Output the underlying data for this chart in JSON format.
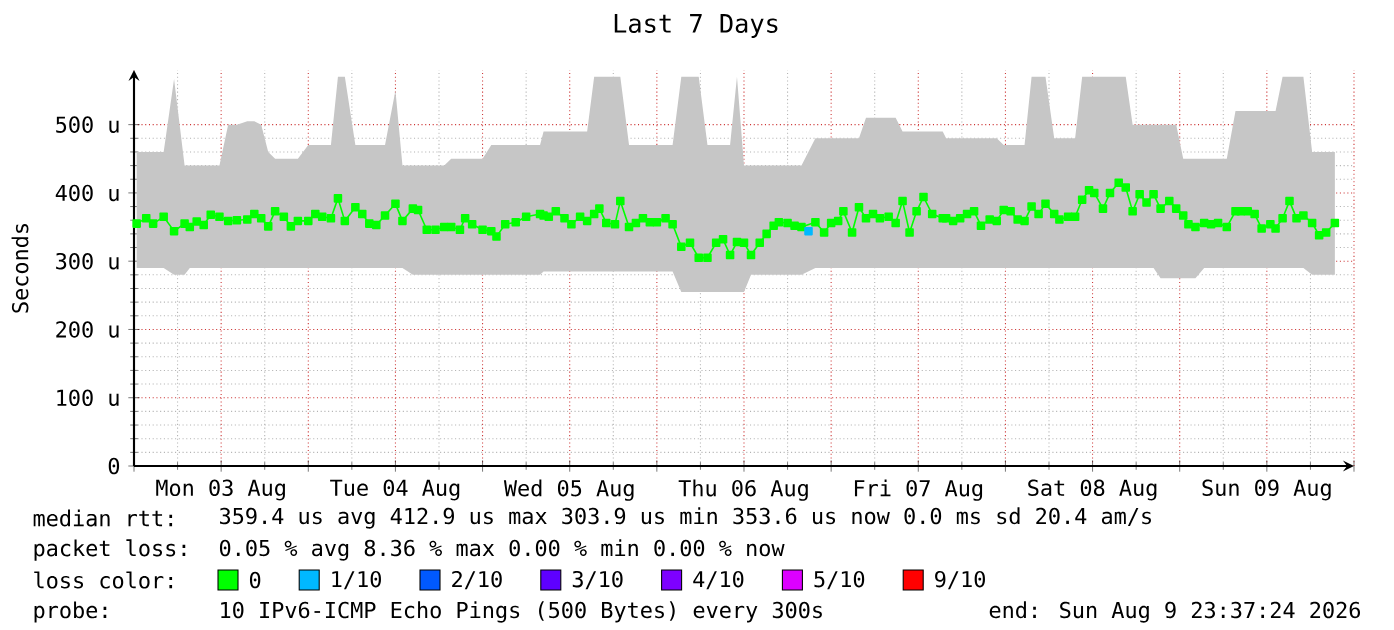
{
  "chart_data": {
    "type": "line",
    "title": "Last 7 Days",
    "ylabel": "Seconds",
    "legend_title": "loss color:",
    "xlim": [
      "2026-08-03T00:00",
      "2026-08-10T00:00"
    ],
    "ylim": [
      0,
      580
    ],
    "xticks": [
      {
        "value": "2026-08-03T00:00",
        "label": null
      },
      {
        "value": "2026-08-03T12:00",
        "label": "Mon 03 Aug"
      },
      {
        "value": "2026-08-04T00:00",
        "label": null
      },
      {
        "value": "2026-08-04T12:00",
        "label": "Tue 04 Aug"
      },
      {
        "value": "2026-08-05T00:00",
        "label": null
      },
      {
        "value": "2026-08-05T12:00",
        "label": "Wed 05 Aug"
      },
      {
        "value": "2026-08-06T00:00",
        "label": null
      },
      {
        "value": "2026-08-06T12:00",
        "label": "Thu 06 Aug"
      },
      {
        "value": "2026-08-07T00:00",
        "label": null
      },
      {
        "value": "2026-08-07T12:00",
        "label": "Fri 07 Aug"
      },
      {
        "value": "2026-08-08T00:00",
        "label": null
      },
      {
        "value": "2026-08-08T12:00",
        "label": "Sat 08 Aug"
      },
      {
        "value": "2026-08-09T00:00",
        "label": null
      },
      {
        "value": "2026-08-09T12:00",
        "label": "Sun 09 Aug"
      },
      {
        "value": "2026-08-10T00:00",
        "label": null
      }
    ],
    "yticks": [
      0,
      {
        "value": 100,
        "label": "100 u"
      },
      {
        "value": 200,
        "label": "200 u"
      },
      {
        "value": 300,
        "label": "300 u"
      },
      {
        "value": 400,
        "label": "400 u"
      },
      {
        "value": 500,
        "label": "500 u"
      }
    ],
    "grid": true,
    "legend": "bottom",
    "marker": "square",
    "line_style": "solid",
    "annotations": [
      "median rtt:",
      "359.4 us avg  412.9 us max  303.9 us min  353.6 us now  0.0 ms sd  20.4 am/s",
      "packet loss:",
      "0.05 % avg  8.36 % max  0.00 % min  0.00 % now",
      "probe:",
      "10 IPv6-ICMP Echo Pings (500 Bytes) every 300s",
      "end: Sun Aug  9 23:37:24 2026"
    ],
    "series": [
      {
        "name": "0",
        "color": "#00ff00",
        "x": [
          "2026-08-03T00:22",
          "2026-08-03T01:41",
          "2026-08-03T02:38",
          "2026-08-03T04:05",
          "2026-08-03T05:31",
          "2026-08-03T06:58",
          "2026-08-03T07:41",
          "2026-08-03T08:38",
          "2026-08-03T09:36",
          "2026-08-03T10:34",
          "2026-08-03T11:46",
          "2026-08-03T12:58",
          "2026-08-03T14:10",
          "2026-08-03T15:36",
          "2026-08-03T16:34",
          "2026-08-03T17:31",
          "2026-08-03T18:29",
          "2026-08-03T19:26",
          "2026-08-03T20:38",
          "2026-08-03T21:36",
          "2026-08-03T22:34",
          "2026-08-04T00:00",
          "2026-08-04T00:58",
          "2026-08-04T01:55",
          "2026-08-04T03:07",
          "2026-08-04T04:05",
          "2026-08-04T05:02",
          "2026-08-04T06:29",
          "2026-08-04T07:26",
          "2026-08-04T08:24",
          "2026-08-04T09:22",
          "2026-08-04T10:34",
          "2026-08-04T12:00",
          "2026-08-04T12:58",
          "2026-08-04T14:24",
          "2026-08-04T15:07",
          "2026-08-04T16:19",
          "2026-08-04T17:31",
          "2026-08-04T18:43",
          "2026-08-04T19:41",
          "2026-08-04T20:53",
          "2026-08-04T21:36",
          "2026-08-04T22:34",
          "2026-08-05T00:00",
          "2026-08-05T01:12",
          "2026-08-05T01:55",
          "2026-08-05T03:07",
          "2026-08-05T04:34",
          "2026-08-05T06:00",
          "2026-08-05T07:55",
          "2026-08-05T08:24",
          "2026-08-05T09:07",
          "2026-08-05T10:05",
          "2026-08-05T11:17",
          "2026-08-05T12:14",
          "2026-08-05T13:26",
          "2026-08-05T14:24",
          "2026-08-05T15:22",
          "2026-08-05T16:05",
          "2026-08-05T17:02",
          "2026-08-05T18:14",
          "2026-08-05T18:58",
          "2026-08-05T20:10",
          "2026-08-05T21:07",
          "2026-08-05T22:05",
          "2026-08-05T23:02",
          "2026-08-06T00:00",
          "2026-08-06T01:12",
          "2026-08-06T02:10",
          "2026-08-06T03:22",
          "2026-08-06T04:34",
          "2026-08-06T05:46",
          "2026-08-06T06:58",
          "2026-08-06T08:10",
          "2026-08-06T09:07",
          "2026-08-06T10:05",
          "2026-08-06T11:02",
          "2026-08-06T12:00",
          "2026-08-06T12:58",
          "2026-08-06T14:10",
          "2026-08-06T15:07",
          "2026-08-06T16:05",
          "2026-08-06T16:48",
          "2026-08-06T18:00",
          "2026-08-06T18:58",
          "2026-08-06T19:55",
          "2026-08-06T21:50",
          "2026-08-06T23:02",
          "2026-08-07T00:00",
          "2026-08-07T00:58",
          "2026-08-07T01:41",
          "2026-08-07T02:53",
          "2026-08-07T03:50",
          "2026-08-07T04:48",
          "2026-08-07T05:46",
          "2026-08-07T06:43",
          "2026-08-07T07:55",
          "2026-08-07T08:53",
          "2026-08-07T09:50",
          "2026-08-07T10:48",
          "2026-08-07T11:46",
          "2026-08-07T12:43",
          "2026-08-07T13:55",
          "2026-08-07T15:22",
          "2026-08-07T15:50",
          "2026-08-07T16:48",
          "2026-08-07T17:46",
          "2026-08-07T18:43",
          "2026-08-07T19:41",
          "2026-08-07T20:38",
          "2026-08-07T21:50",
          "2026-08-07T22:48",
          "2026-08-07T23:46",
          "2026-08-08T00:43",
          "2026-08-08T01:41",
          "2026-08-08T02:38",
          "2026-08-08T03:36",
          "2026-08-08T04:34",
          "2026-08-08T05:31",
          "2026-08-08T06:43",
          "2026-08-08T07:26",
          "2026-08-08T08:38",
          "2026-08-08T09:36",
          "2026-08-08T10:34",
          "2026-08-08T11:31",
          "2026-08-08T12:14",
          "2026-08-08T13:26",
          "2026-08-08T14:24",
          "2026-08-08T15:36",
          "2026-08-08T16:34",
          "2026-08-08T17:31",
          "2026-08-08T18:29",
          "2026-08-08T19:26",
          "2026-08-08T20:24",
          "2026-08-08T21:22",
          "2026-08-08T22:34",
          "2026-08-08T23:31",
          "2026-08-09T00:29",
          "2026-08-09T01:12",
          "2026-08-09T02:10",
          "2026-08-09T03:22",
          "2026-08-09T04:19",
          "2026-08-09T05:17",
          "2026-08-09T06:29",
          "2026-08-09T07:41",
          "2026-08-09T08:24",
          "2026-08-09T09:22",
          "2026-08-09T10:19",
          "2026-08-09T11:17",
          "2026-08-09T12:29",
          "2026-08-09T13:12",
          "2026-08-09T14:10",
          "2026-08-09T15:07",
          "2026-08-09T16:05",
          "2026-08-09T17:02",
          "2026-08-09T18:14",
          "2026-08-09T19:12",
          "2026-08-09T20:10",
          "2026-08-09T21:22"
        ],
        "values": [
          355,
          363,
          355,
          365,
          344,
          355,
          350,
          358,
          353,
          368,
          365,
          359,
          360,
          361,
          369,
          363,
          351,
          373,
          365,
          351,
          359,
          359,
          369,
          365,
          363,
          392,
          359,
          379,
          369,
          355,
          353,
          367,
          384,
          359,
          377,
          375,
          346,
          346,
          350,
          350,
          346,
          363,
          354,
          346,
          344,
          336,
          354,
          357,
          365,
          369,
          367,
          365,
          373,
          363,
          354,
          365,
          359,
          369,
          377,
          356,
          354,
          388,
          350,
          356,
          363,
          357,
          357,
          363,
          354,
          321,
          327,
          305,
          305,
          327,
          332,
          309,
          328,
          327,
          309,
          327,
          340,
          352,
          357,
          356,
          352,
          350,
          357,
          342,
          356,
          359,
          373,
          342,
          379,
          363,
          369,
          363,
          365,
          356,
          388,
          342,
          373,
          394,
          369,
          363,
          363,
          359,
          363,
          369,
          373,
          352,
          361,
          359,
          375,
          373,
          361,
          359,
          380,
          369,
          384,
          369,
          361,
          365,
          365,
          390,
          404,
          400,
          377,
          400,
          415,
          408,
          373,
          398,
          386,
          398,
          377,
          388,
          377,
          367,
          354,
          350,
          356,
          354,
          356,
          350,
          373,
          373,
          373,
          369,
          348,
          354,
          348,
          363,
          388,
          363,
          367,
          356,
          338,
          342,
          356
        ],
        "lower": [
          290,
          290,
          290,
          290,
          280,
          280,
          290,
          290,
          290,
          290,
          290,
          290,
          290,
          290,
          290,
          290,
          290,
          290,
          290,
          290,
          290,
          290,
          290,
          290,
          290,
          290,
          290,
          290,
          290,
          290,
          290,
          290,
          290,
          290,
          280,
          280,
          280,
          280,
          280,
          280,
          280,
          280,
          280,
          280,
          280,
          280,
          280,
          280,
          280,
          280,
          285,
          285,
          285,
          285,
          285,
          285,
          285,
          285,
          285,
          285,
          285,
          285,
          285,
          285,
          285,
          285,
          285,
          285,
          285,
          255,
          255,
          255,
          255,
          255,
          255,
          255,
          255,
          255,
          280,
          280,
          280,
          280,
          280,
          280,
          280,
          280,
          290,
          290,
          290,
          290,
          290,
          290,
          290,
          290,
          290,
          290,
          290,
          290,
          290,
          290,
          290,
          290,
          290,
          290,
          290,
          290,
          290,
          290,
          290,
          290,
          290,
          290,
          290,
          290,
          290,
          290,
          290,
          290,
          290,
          290,
          290,
          290,
          290,
          290,
          290,
          290,
          290,
          290,
          290,
          290,
          290,
          290,
          290,
          290,
          275,
          275,
          275,
          275,
          275,
          275,
          290,
          290,
          290,
          290,
          290,
          290,
          290,
          290,
          290,
          290,
          290,
          290,
          290,
          290,
          290,
          280,
          280,
          280,
          280
        ],
        "upper": [
          460,
          460,
          460,
          460,
          567,
          440,
          440,
          440,
          440,
          440,
          440,
          500,
          500,
          505,
          505,
          500,
          460,
          450,
          450,
          450,
          450,
          470,
          470,
          470,
          470,
          570,
          570,
          470,
          470,
          470,
          470,
          470,
          550,
          440,
          440,
          440,
          440,
          440,
          440,
          450,
          450,
          450,
          450,
          450,
          470,
          470,
          470,
          470,
          470,
          470,
          490,
          490,
          490,
          490,
          490,
          490,
          490,
          570,
          570,
          570,
          570,
          570,
          470,
          470,
          470,
          470,
          470,
          470,
          470,
          570,
          570,
          570,
          470,
          470,
          470,
          470,
          570,
          440,
          440,
          440,
          440,
          440,
          440,
          440,
          440,
          440,
          480,
          480,
          480,
          480,
          480,
          480,
          480,
          510,
          510,
          510,
          510,
          510,
          490,
          490,
          490,
          490,
          490,
          490,
          480,
          480,
          480,
          480,
          480,
          480,
          480,
          480,
          470,
          470,
          470,
          470,
          570,
          570,
          570,
          480,
          480,
          480,
          480,
          570,
          570,
          570,
          570,
          570,
          570,
          570,
          500,
          500,
          500,
          500,
          500,
          500,
          500,
          450,
          450,
          450,
          450,
          450,
          450,
          450,
          520,
          520,
          520,
          520,
          520,
          520,
          520,
          570,
          570,
          570,
          570,
          460,
          460,
          460,
          460
        ]
      },
      {
        "name": "1/10",
        "color": "#00b8ff",
        "x": [
          "2026-08-06T20:53"
        ],
        "values": [
          344
        ]
      },
      {
        "name": "2/10",
        "color": "#0059ff"
      },
      {
        "name": "3/10",
        "color": "#5e00ff"
      },
      {
        "name": "4/10",
        "color": "#7e00ff"
      },
      {
        "name": "5/10",
        "color": "#dd00ff"
      },
      {
        "name": "9/10",
        "color": "#ff0000"
      }
    ]
  }
}
